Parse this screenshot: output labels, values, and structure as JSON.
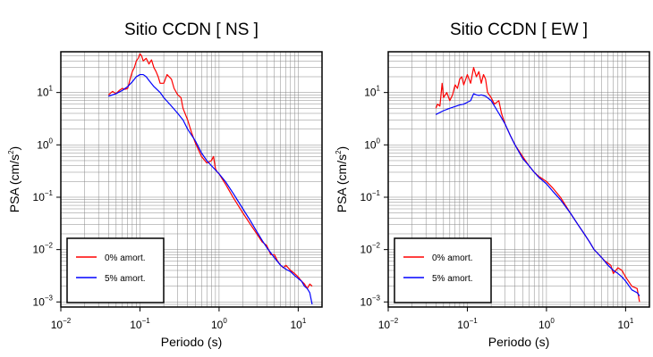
{
  "chart_data": [
    {
      "type": "line",
      "title": "Sitio CCDN [ NS ]",
      "xlabel": "Periodo (s)",
      "ylabel": "PSA (cm/s²)",
      "ylabel_parts": {
        "pre": "PSA (cm/s",
        "sup": "2",
        "post": ")"
      },
      "xscale": "log",
      "yscale": "log",
      "xlim": [
        0.01,
        20
      ],
      "ylim": [
        0.0008,
        60
      ],
      "grid": true,
      "legend_position": "bottom-left",
      "x_ticks": [
        {
          "base": "10",
          "exp": "−2",
          "value": 0.01
        },
        {
          "base": "10",
          "exp": "−1",
          "value": 0.1
        },
        {
          "base": "10",
          "exp": "0",
          "value": 1
        },
        {
          "base": "10",
          "exp": "1",
          "value": 10
        }
      ],
      "y_ticks": [
        {
          "base": "10",
          "exp": "1",
          "value": 10
        },
        {
          "base": "10",
          "exp": "0",
          "value": 1
        },
        {
          "base": "10",
          "exp": "−1",
          "value": 0.1
        },
        {
          "base": "10",
          "exp": "−2",
          "value": 0.01
        },
        {
          "base": "10",
          "exp": "−3",
          "value": 0.001
        }
      ],
      "series": [
        {
          "name": "0% amort.",
          "color": "#ff0000",
          "x": [
            0.04,
            0.045,
            0.05,
            0.055,
            0.06,
            0.065,
            0.07,
            0.075,
            0.08,
            0.085,
            0.09,
            0.095,
            0.1,
            0.105,
            0.11,
            0.12,
            0.13,
            0.14,
            0.15,
            0.16,
            0.17,
            0.18,
            0.2,
            0.22,
            0.25,
            0.27,
            0.3,
            0.33,
            0.35,
            0.4,
            0.45,
            0.5,
            0.55,
            0.6,
            0.7,
            0.8,
            0.85,
            0.9,
            0.95,
            1.0,
            1.2,
            1.5,
            2,
            2.5,
            3,
            3.5,
            4,
            4.5,
            5,
            5.5,
            6,
            6.5,
            7,
            8,
            9,
            10,
            11,
            12,
            13,
            14,
            15
          ],
          "y": [
            9,
            10.5,
            9.5,
            11,
            12,
            11.5,
            12,
            18,
            25,
            30,
            40,
            45,
            55,
            50,
            40,
            45,
            35,
            42,
            30,
            25,
            20,
            15,
            15,
            22,
            18,
            12,
            9,
            8,
            5,
            3,
            1.7,
            1.1,
            0.8,
            0.6,
            0.45,
            0.5,
            0.6,
            0.35,
            0.3,
            0.28,
            0.18,
            0.1,
            0.05,
            0.03,
            0.02,
            0.014,
            0.012,
            0.008,
            0.008,
            0.006,
            0.005,
            0.0045,
            0.005,
            0.004,
            0.0035,
            0.003,
            0.0025,
            0.0022,
            0.0018,
            0.0022,
            0.002
          ]
        },
        {
          "name": "5% amort.",
          "color": "#0000ff",
          "x": [
            0.04,
            0.05,
            0.06,
            0.07,
            0.08,
            0.09,
            0.1,
            0.11,
            0.12,
            0.13,
            0.15,
            0.18,
            0.2,
            0.25,
            0.3,
            0.35,
            0.4,
            0.5,
            0.6,
            0.7,
            0.8,
            1,
            1.2,
            1.5,
            2,
            2.5,
            3,
            3.5,
            4,
            5,
            6,
            7,
            8,
            9,
            10,
            11,
            12,
            13,
            14,
            15
          ],
          "y": [
            8.5,
            9.5,
            11,
            13,
            16,
            20,
            22,
            22,
            20,
            17,
            13,
            10,
            8,
            5.5,
            4,
            3,
            2,
            1.2,
            0.7,
            0.5,
            0.4,
            0.28,
            0.2,
            0.12,
            0.06,
            0.035,
            0.022,
            0.015,
            0.011,
            0.007,
            0.005,
            0.0042,
            0.0038,
            0.0032,
            0.0028,
            0.0025,
            0.002,
            0.0018,
            0.0015,
            0.0009
          ]
        }
      ]
    },
    {
      "type": "line",
      "title": "Sitio CCDN [ EW ]",
      "xlabel": "Periodo (s)",
      "ylabel": "PSA (cm/s²)",
      "ylabel_parts": {
        "pre": "PSA (cm/s",
        "sup": "2",
        "post": ")"
      },
      "xscale": "log",
      "yscale": "log",
      "xlim": [
        0.01,
        20
      ],
      "ylim": [
        0.0008,
        60
      ],
      "grid": true,
      "legend_position": "bottom-left",
      "x_ticks": [
        {
          "base": "10",
          "exp": "−2",
          "value": 0.01
        },
        {
          "base": "10",
          "exp": "−1",
          "value": 0.1
        },
        {
          "base": "10",
          "exp": "0",
          "value": 1
        },
        {
          "base": "10",
          "exp": "1",
          "value": 10
        }
      ],
      "y_ticks": [
        {
          "base": "10",
          "exp": "1",
          "value": 10
        },
        {
          "base": "10",
          "exp": "0",
          "value": 1
        },
        {
          "base": "10",
          "exp": "−1",
          "value": 0.1
        },
        {
          "base": "10",
          "exp": "−2",
          "value": 0.01
        },
        {
          "base": "10",
          "exp": "−3",
          "value": 0.001
        }
      ],
      "series": [
        {
          "name": "0% amort.",
          "color": "#ff0000",
          "x": [
            0.04,
            0.042,
            0.045,
            0.048,
            0.05,
            0.055,
            0.06,
            0.065,
            0.07,
            0.075,
            0.08,
            0.085,
            0.09,
            0.1,
            0.11,
            0.12,
            0.13,
            0.14,
            0.15,
            0.16,
            0.17,
            0.18,
            0.2,
            0.22,
            0.25,
            0.27,
            0.3,
            0.35,
            0.4,
            0.5,
            0.6,
            0.7,
            0.8,
            1,
            1.2,
            1.5,
            2,
            2.5,
            3,
            3.5,
            4,
            5,
            5.5,
            6,
            6.5,
            7,
            8,
            9,
            10,
            12,
            14,
            15
          ],
          "y": [
            5,
            6,
            5.5,
            15,
            8,
            10,
            7,
            9,
            14,
            12,
            18,
            20,
            14,
            22,
            15,
            30,
            20,
            25,
            15,
            22,
            18,
            10,
            8,
            6,
            7,
            4,
            2.5,
            1.5,
            1.0,
            0.6,
            0.4,
            0.3,
            0.25,
            0.2,
            0.15,
            0.1,
            0.05,
            0.03,
            0.02,
            0.014,
            0.01,
            0.007,
            0.006,
            0.0055,
            0.005,
            0.0035,
            0.0045,
            0.004,
            0.003,
            0.002,
            0.0018,
            0.001
          ]
        },
        {
          "name": "5% amort.",
          "color": "#0000ff",
          "x": [
            0.04,
            0.05,
            0.06,
            0.07,
            0.08,
            0.09,
            0.1,
            0.11,
            0.12,
            0.13,
            0.14,
            0.15,
            0.17,
            0.2,
            0.25,
            0.3,
            0.35,
            0.4,
            0.5,
            0.6,
            0.7,
            0.8,
            1,
            1.2,
            1.5,
            2,
            2.5,
            3,
            3.5,
            4,
            5,
            6,
            7,
            8,
            9,
            10,
            12,
            14,
            15
          ],
          "y": [
            3.8,
            4.5,
            5,
            5.4,
            5.8,
            6,
            6.5,
            7,
            9.5,
            9,
            8.8,
            9,
            8.5,
            7,
            4,
            2.5,
            1.5,
            1.0,
            0.55,
            0.4,
            0.3,
            0.24,
            0.18,
            0.13,
            0.09,
            0.05,
            0.03,
            0.02,
            0.014,
            0.01,
            0.007,
            0.005,
            0.004,
            0.0035,
            0.003,
            0.0025,
            0.0017,
            0.0015,
            0.0013
          ]
        }
      ]
    }
  ]
}
